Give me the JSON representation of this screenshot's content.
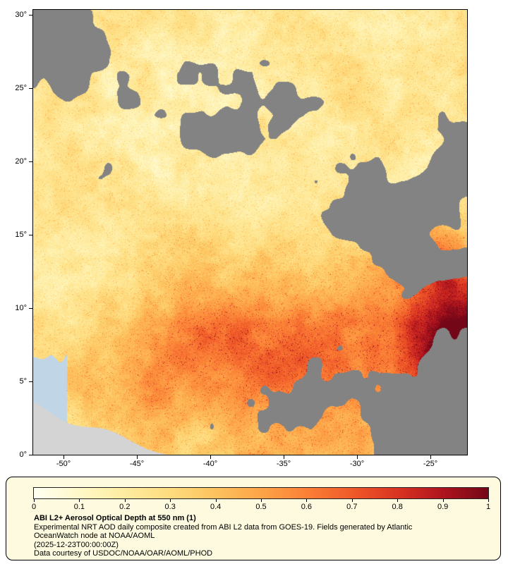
{
  "page": {
    "background": "#ffffff"
  },
  "axes": {
    "y": {
      "name": "latitude",
      "ticks": [
        {
          "label": "30°",
          "value": 30
        },
        {
          "label": "25°",
          "value": 25
        },
        {
          "label": "20°",
          "value": 20
        },
        {
          "label": "15°",
          "value": 15
        },
        {
          "label": "10°",
          "value": 10
        },
        {
          "label": "5°",
          "value": 5
        },
        {
          "label": "0°",
          "value": 0
        }
      ]
    },
    "x": {
      "name": "longitude",
      "ticks": [
        {
          "label": "-50°",
          "value": -50
        },
        {
          "label": "-45°",
          "value": -45
        },
        {
          "label": "-40°",
          "value": -40
        },
        {
          "label": "-35°",
          "value": -35
        },
        {
          "label": "-30°",
          "value": -30
        },
        {
          "label": "-25°",
          "value": -25
        }
      ]
    }
  },
  "legend": {
    "background": "#fdfadf",
    "title": "ABI L2+ Aerosol Optical Depth at 550 nm (1)",
    "description_line1": "Experimental NRT AOD daily composite created from ABI L2 data from GOES-19. Fields generated by Atlantic",
    "description_line2": "OceanWatch node at NOAA/AOML",
    "timestamp": "(2025-12-23T00:00:00Z)",
    "credit": "Data courtesy of USDOC/NOAA/OAR/AOML/PHOD"
  },
  "chart_data": {
    "type": "heatmap",
    "variable": "ABI L2+ Aerosol Optical Depth at 550 nm",
    "platform": "GOES-19",
    "lon_range_deg": [
      -52.1,
      -22.5
    ],
    "lat_range_deg": [
      0,
      30.3
    ],
    "colorbar": {
      "min": 0,
      "max": 1,
      "tick_labels": [
        "0",
        "0.1",
        "0.2",
        "0.3",
        "0.4",
        "0.5",
        "0.6",
        "0.7",
        "0.8",
        "0.9",
        "1"
      ],
      "stops": [
        {
          "v": 0.0,
          "color": "#fffff2"
        },
        {
          "v": 0.1,
          "color": "#fff8c8"
        },
        {
          "v": 0.2,
          "color": "#feeca0"
        },
        {
          "v": 0.3,
          "color": "#fedc7e"
        },
        {
          "v": 0.4,
          "color": "#fdc25e"
        },
        {
          "v": 0.5,
          "color": "#fda448"
        },
        {
          "v": 0.6,
          "color": "#fb8036"
        },
        {
          "v": 0.7,
          "color": "#f05a29"
        },
        {
          "v": 0.8,
          "color": "#d93322"
        },
        {
          "v": 0.9,
          "color": "#ae141e"
        },
        {
          "v": 1.0,
          "color": "#730617"
        }
      ]
    },
    "missing_data_color": "#838383",
    "land_color": "#d4d4d4",
    "water_color": "#c0d6e7",
    "annotations": [
      "Background AOD ~0.1-0.35 (pale yellow to light orange) over most of the domain",
      "Moderate AOD band ~0.3-0.6 with red speckle across ~2-10N between ~45W and 28W",
      "High AOD plume ~0.6-1.0 (dark red) near the eastern edge, ~23-26W, 5-13N",
      "Gray patches are cloud/missing data: NW corner, central-east band near 12-18N, SE corner, along 0-2N",
      "Light gray land (NE South America) with pale blue coastal water in the SW corner"
    ]
  }
}
